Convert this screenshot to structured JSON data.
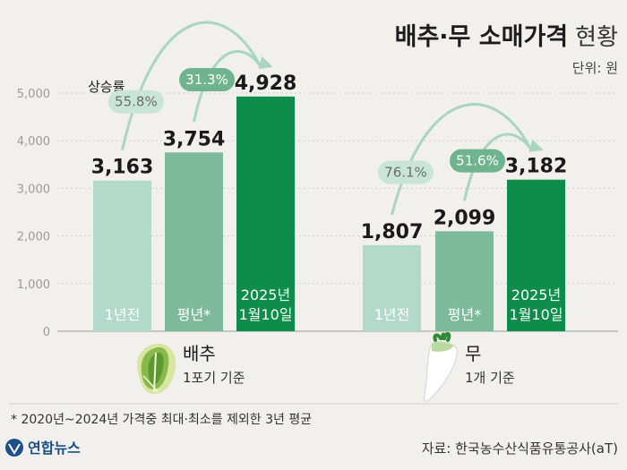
{
  "chart_data": {
    "type": "bar",
    "title": "배추·무 소매가격",
    "title_suffix": "현황",
    "unit_label": "단위: 원",
    "ylim": [
      0,
      5000
    ],
    "yticks": [
      "0",
      "1,000",
      "2,000",
      "3,000",
      "4,000",
      "5,000"
    ],
    "ytick_values": [
      0,
      1000,
      2000,
      3000,
      4000,
      5000
    ],
    "growth_label": "상승률",
    "groups": [
      {
        "name": "배추",
        "sub": "1포기 기준",
        "icon": "cabbage-icon",
        "bars": [
          {
            "label": "1년전",
            "value": 3163,
            "value_label": "3,163",
            "color": "#b3d9ca"
          },
          {
            "label": "평년*",
            "value": 3754,
            "value_label": "3,754",
            "color": "#7dba9b"
          },
          {
            "label": "2025년\n1월10일",
            "value": 4928,
            "value_label": "4,928",
            "color": "#0e8c4a"
          }
        ],
        "growth": [
          {
            "from": 0,
            "label": "55.8%",
            "style": "light"
          },
          {
            "from": 1,
            "label": "31.3%",
            "style": "dark"
          }
        ]
      },
      {
        "name": "무",
        "sub": "1개 기준",
        "icon": "radish-icon",
        "bars": [
          {
            "label": "1년전",
            "value": 1807,
            "value_label": "1,807",
            "color": "#b3d9ca"
          },
          {
            "label": "평년*",
            "value": 2099,
            "value_label": "2,099",
            "color": "#7dba9b"
          },
          {
            "label": "2025년\n1월10일",
            "value": 3182,
            "value_label": "3,182",
            "color": "#0e8c4a"
          }
        ],
        "growth": [
          {
            "from": 0,
            "label": "76.1%",
            "style": "light"
          },
          {
            "from": 1,
            "label": "51.6%",
            "style": "dark"
          }
        ]
      }
    ]
  },
  "footnote": "* 2020년~2024년 가격중 최대·최소를 제외한 3년 평균",
  "source": "자료: 한국농수산식품유통공사(aT)",
  "logo": "연합뉴스",
  "colors": {
    "light_pill": "#c9e5d8",
    "dark_pill": "#6fb48f",
    "arrow": "#a8d6c1"
  }
}
